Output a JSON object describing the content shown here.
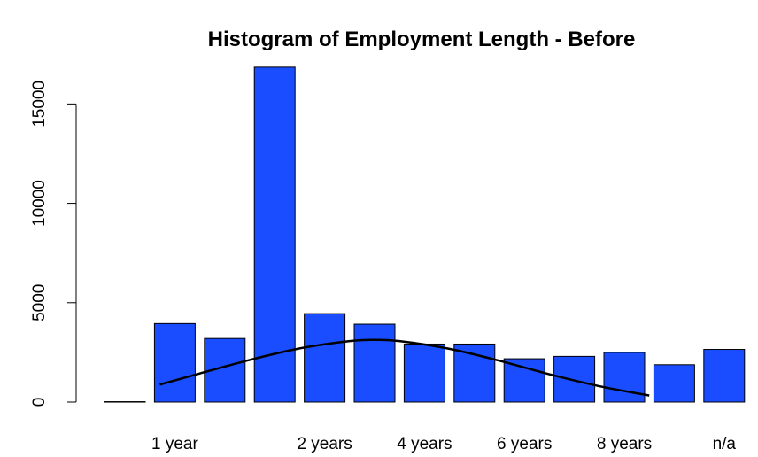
{
  "chart_data": {
    "type": "bar",
    "title": "Histogram of Employment Length - Before",
    "xlabel": "",
    "ylabel": "",
    "bar_color": "#1a4dff",
    "curve_color": "#000000",
    "categories": [
      "",
      "1 year",
      "",
      "",
      "2 years",
      "",
      "4 years",
      "",
      "6 years",
      "",
      "8 years",
      "",
      "n/a"
    ],
    "values": [
      20,
      3950,
      3200,
      16850,
      4450,
      3920,
      2920,
      2920,
      2180,
      2300,
      2500,
      1880,
      2650
    ],
    "yticks": [
      0,
      5000,
      10000,
      15000
    ],
    "ytick_labels": [
      "0",
      "5000",
      "10000",
      "15000"
    ],
    "ylim": [
      0,
      17200
    ],
    "curve": {
      "x": [
        0.7,
        1.5,
        2.5,
        3.5,
        4.5,
        5.0,
        5.5,
        6.5,
        7.5,
        8.5,
        9.5,
        10.5
      ],
      "y": [
        880,
        1440,
        2120,
        2700,
        3070,
        3130,
        3070,
        2680,
        2080,
        1400,
        800,
        330
      ]
    },
    "grid": false,
    "legend": "none"
  }
}
